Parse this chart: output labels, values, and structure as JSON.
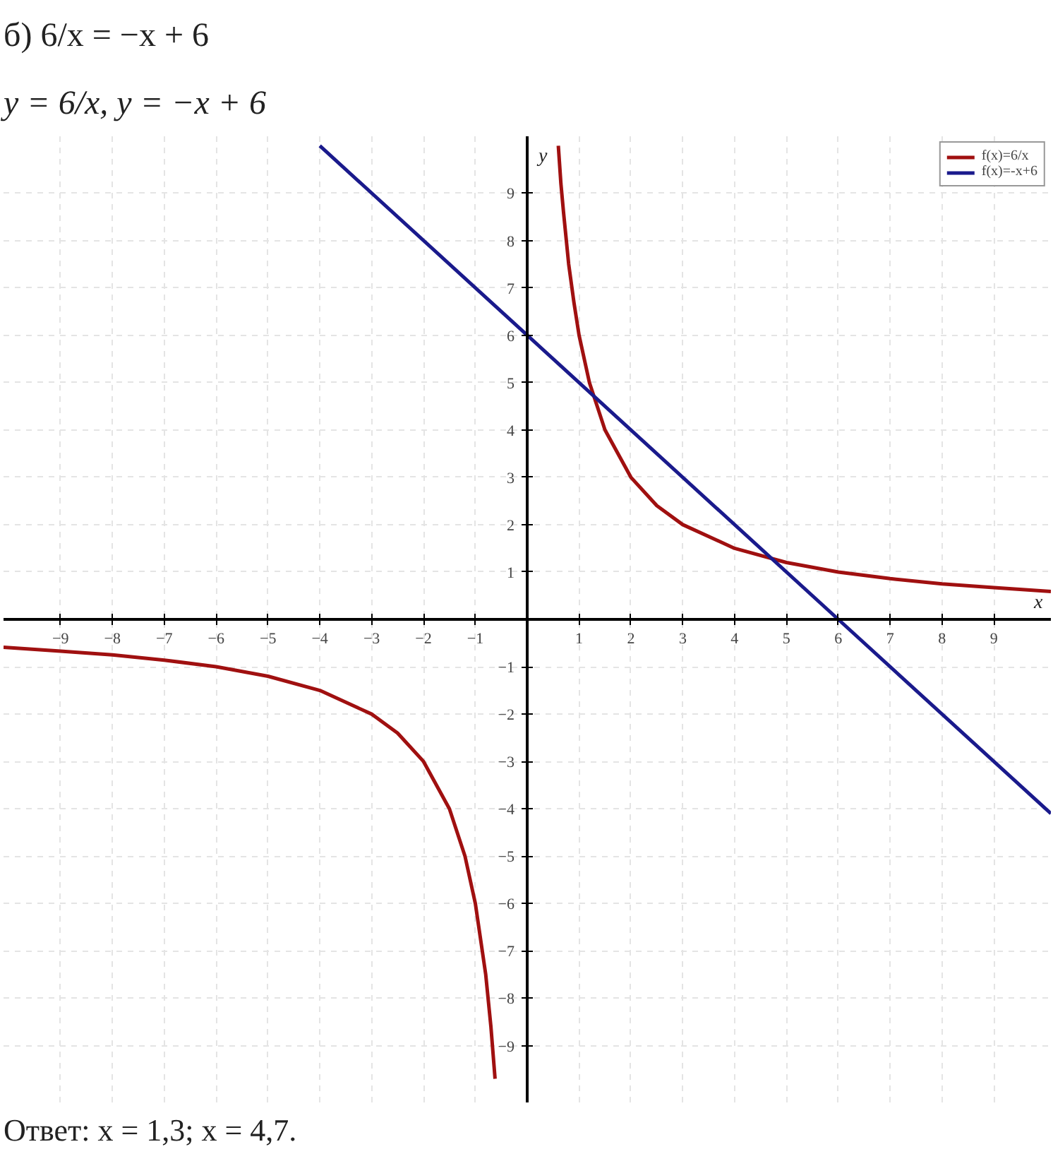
{
  "chart_data": {
    "type": "line",
    "title": "б) 6/x = −x + 6",
    "subtitle": "y = 6/x,        y = −x + 6",
    "annotations": [
      "Ответ: x = 1,3;   x = 4,7."
    ],
    "xlabel": "x",
    "ylabel": "y",
    "series": [
      {
        "name": "f(x)=6/x",
        "color": "#a01010",
        "x": [
          -10.1,
          -9,
          -8,
          -7,
          -6,
          -5,
          -4,
          -3,
          -2.5,
          -2,
          -1.5,
          -1.2,
          -1,
          -0.8,
          -0.7,
          -0.62,
          null,
          0.6,
          0.65,
          0.7,
          0.8,
          0.9,
          1,
          1.2,
          1.5,
          2,
          2.5,
          3,
          4,
          5,
          6,
          7,
          8,
          9,
          10.1
        ],
        "values": [
          -0.59,
          -0.67,
          -0.75,
          -0.86,
          -1,
          -1.2,
          -1.5,
          -2,
          -2.4,
          -3,
          -4,
          -5,
          -6,
          -7.5,
          -8.6,
          -9.7,
          null,
          10,
          9.2,
          8.6,
          7.5,
          6.7,
          6,
          5,
          4,
          3,
          2.4,
          2,
          1.5,
          1.2,
          1,
          0.86,
          0.75,
          0.67,
          0.59
        ]
      },
      {
        "name": "f(x)=-x+6",
        "color": "#1a1a8c",
        "x": [
          -4,
          0,
          6,
          10.1
        ],
        "values": [
          10,
          6,
          0,
          -4.1
        ]
      }
    ],
    "xlim": [
      -10.1,
      10.1
    ],
    "ylim": [
      -10.2,
      10.2
    ],
    "xticks": [
      -9,
      -8,
      -7,
      -6,
      -5,
      -4,
      -3,
      -2,
      -1,
      1,
      2,
      3,
      4,
      5,
      6,
      7,
      8,
      9
    ],
    "yticks": [
      -9,
      -8,
      -7,
      -6,
      -5,
      -4,
      -3,
      -2,
      -1,
      1,
      2,
      3,
      4,
      5,
      6,
      7,
      8,
      9
    ],
    "grid": true,
    "legend": "top right",
    "marker": "none",
    "line_style": "solid"
  }
}
